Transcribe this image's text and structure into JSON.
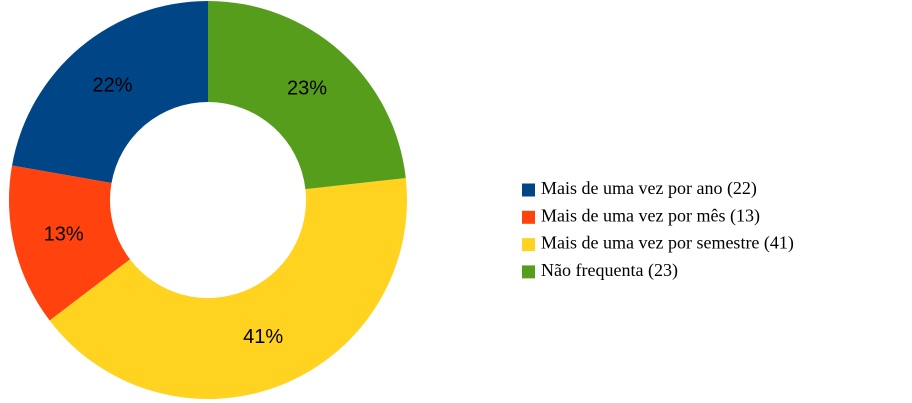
{
  "chart_data": {
    "type": "pie",
    "categories": [
      "Mais de uma vez por ano (22)",
      "Mais de uma vez por mês (13)",
      "Mais de uma vez por semestre (41)",
      "Não frequenta (23)"
    ],
    "values": [
      22,
      13,
      41,
      23
    ],
    "value_labels": [
      "22%",
      "13%",
      "41%",
      "23%"
    ],
    "colors": [
      "#004586",
      "#ff420e",
      "#ffd320",
      "#579d1c"
    ],
    "donut": true,
    "legend": "right"
  }
}
